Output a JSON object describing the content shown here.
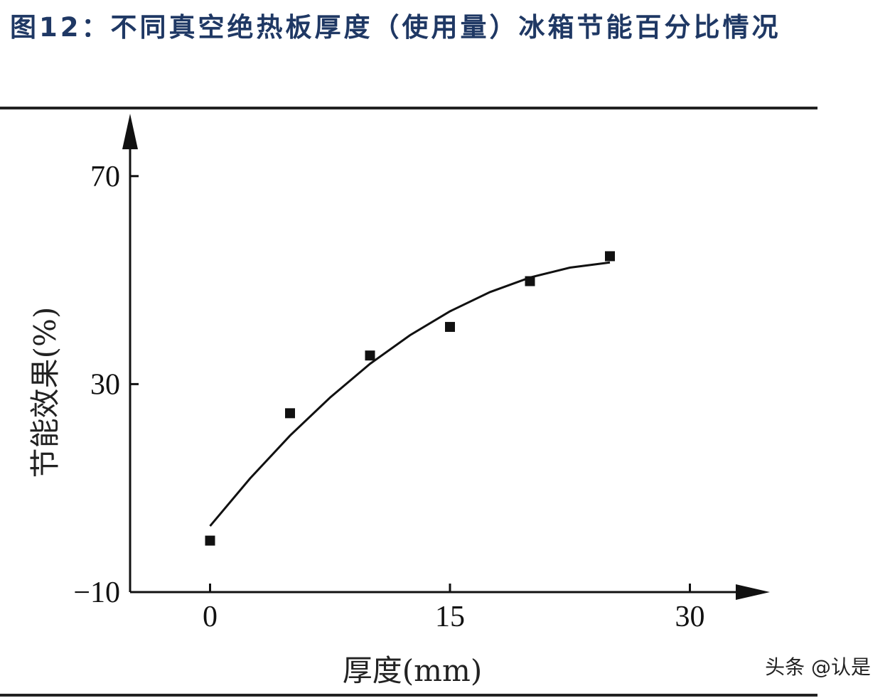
{
  "chart_data": {
    "type": "scatter",
    "title": "图12：不同真空绝热板厚度（使用量）冰箱节能百分比情况",
    "x_label": "厚度(mm)",
    "y_label": "节能效果(%)",
    "watermark": "头条 @认是",
    "xlim": [
      -5,
      35
    ],
    "ylim": [
      -10,
      82
    ],
    "xticks": [
      0,
      15,
      30
    ],
    "yticks": [
      {
        "value": -10,
        "label": "−10"
      },
      30,
      70
    ],
    "series": [
      {
        "kind": "points",
        "color": "#111111",
        "x": [
          0,
          5,
          10,
          15,
          20,
          25
        ],
        "values": [
          -0.1,
          24.4,
          35.5,
          41,
          49.8,
          54.6
        ]
      },
      {
        "kind": "fit",
        "color": "#111111",
        "x": [
          0,
          2.5,
          5,
          7.5,
          10,
          12.5,
          15,
          17.5,
          20,
          22.5,
          25
        ],
        "values": [
          2.7,
          11.85,
          20.1,
          27.4,
          33.9,
          39.4,
          44.0,
          47.7,
          50.5,
          52.4,
          53.4
        ]
      }
    ]
  }
}
